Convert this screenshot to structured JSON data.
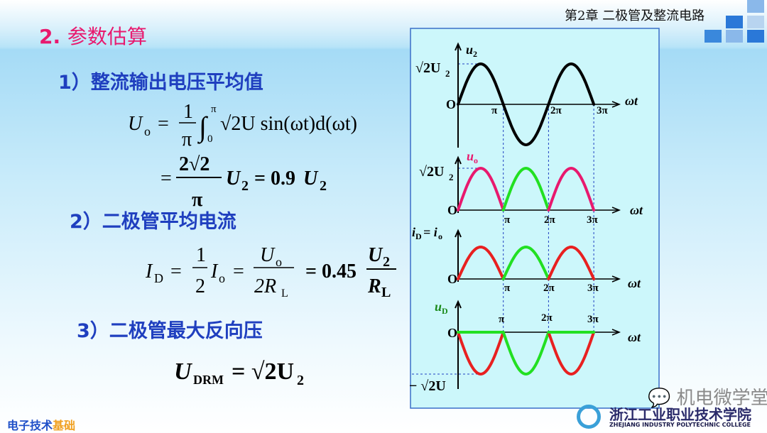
{
  "header": {
    "chapter": "第2章 二极管及整流电路",
    "title_num": "2.",
    "title_text": "参数估算"
  },
  "items": [
    {
      "label": "1）整流输出电压平均值"
    },
    {
      "label": "2）二极管平均电流"
    },
    {
      "label": "3）二极管最大反向压"
    }
  ],
  "formula1": {
    "U": "U",
    "o": "o",
    "eq": "=",
    "num": "1",
    "den": "π",
    "int": "∫",
    "upper": "π",
    "lower": "0",
    "body": "√2U sin(ωt)d(ωt)"
  },
  "formula2": {
    "eq": "=",
    "num": "2√2",
    "den": "π",
    "U": "U",
    "sub": "2",
    "eq2": "= 0.9",
    "U2": "U",
    "sub2": "2"
  },
  "formula3": {
    "I": "I",
    "D": "D",
    "eq": "=",
    "n1": "1",
    "d1": "2",
    "I2": "I",
    "o": "o",
    "eq2": "=",
    "nU": "U",
    "no": "o",
    "d2": "2R",
    "dL": "L",
    "eq3": "= 0.45",
    "nU2": "U",
    "n2": "2",
    "dR": "R",
    "dRL": "L"
  },
  "formula4": {
    "U": "U",
    "sub": "DRM",
    "eq": "= √2U",
    "sub2": "2"
  },
  "graph": {
    "u2_label": "u",
    "u2_sub": "2",
    "peak_label": "√2U",
    "peak_sub": "2",
    "origin": "O",
    "wt": "ωt",
    "pi": "π",
    "pi2": "2π",
    "pi3": "3π",
    "uo_label": "u",
    "uo_sub": "o",
    "id_label": "i",
    "id_sub": "D",
    "id_eq": "= i",
    "id_sub2": "o",
    "ud_label": "u",
    "ud_sub": "D",
    "neg_peak": "− √2U",
    "colors": {
      "u2": "#000000",
      "uo_a": "#e8196e",
      "uo_b": "#22e022",
      "id_a": "#e82020",
      "id_b": "#22e022",
      "ud_a": "#e82020",
      "ud_b": "#22e022",
      "panel": "#ccf7fb",
      "panel_border": "#3a6fc8",
      "guide": "#2040c0"
    }
  },
  "footer": {
    "text_a": "电子技术",
    "text_b": "基础"
  },
  "watermark": "机电微学堂",
  "college": {
    "cn": "浙江工业职业技术学院",
    "en": "ZHEJIANG INDUSTRY POLYTECHNIC COLLEGE"
  }
}
